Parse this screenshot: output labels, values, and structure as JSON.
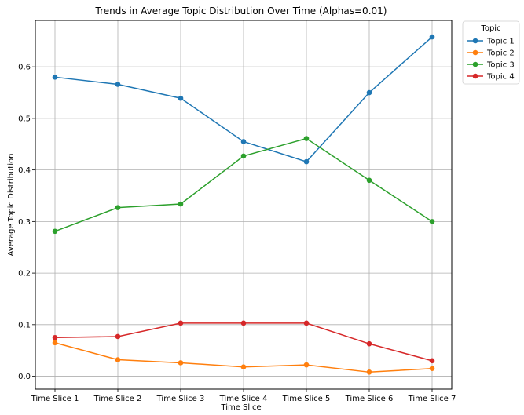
{
  "chart_data": {
    "type": "line",
    "title": "Trends in Average Topic Distribution Over Time (Alphas=0.01)",
    "xlabel": "Time Slice",
    "ylabel": "Average Topic Distribution",
    "categories": [
      "Time Slice 1",
      "Time Slice 2",
      "Time Slice 3",
      "Time Slice 4",
      "Time Slice 5",
      "Time Slice 6",
      "Time Slice 7"
    ],
    "ylim": [
      -0.025,
      0.69
    ],
    "yticks": [
      0.0,
      0.1,
      0.2,
      0.3,
      0.4,
      0.5,
      0.6
    ],
    "ytick_labels": [
      "0.0",
      "0.1",
      "0.2",
      "0.3",
      "0.4",
      "0.5",
      "0.6"
    ],
    "grid": true,
    "legend": {
      "title": "Topic",
      "placement": "outside-top-right"
    },
    "series": [
      {
        "name": "Topic 1",
        "color": "#1f77b4",
        "values": [
          0.58,
          0.566,
          0.539,
          0.455,
          0.416,
          0.55,
          0.658
        ]
      },
      {
        "name": "Topic 2",
        "color": "#ff7f0e",
        "values": [
          0.065,
          0.032,
          0.026,
          0.018,
          0.022,
          0.008,
          0.015
        ]
      },
      {
        "name": "Topic 3",
        "color": "#2ca02c",
        "values": [
          0.281,
          0.327,
          0.334,
          0.427,
          0.461,
          0.38,
          0.3
        ]
      },
      {
        "name": "Topic 4",
        "color": "#d62728",
        "values": [
          0.075,
          0.077,
          0.103,
          0.103,
          0.103,
          0.063,
          0.03
        ]
      }
    ]
  }
}
